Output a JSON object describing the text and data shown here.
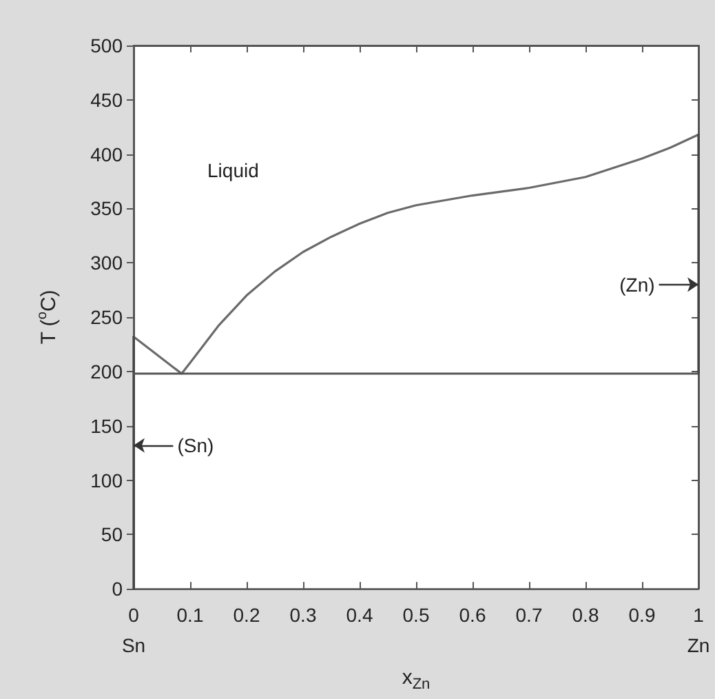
{
  "chart_data": {
    "type": "line",
    "xlabel": "x$_{Zn}$",
    "ylabel": "T ($^{o}$C)",
    "xlim": [
      0,
      1
    ],
    "ylim": [
      0,
      500
    ],
    "xticks": [
      {
        "value": 0,
        "label": "0\nSn"
      },
      0.1,
      0.2,
      0.3,
      0.4,
      0.5,
      0.6,
      0.7,
      0.8,
      0.9,
      {
        "value": 1,
        "label": "1\nZn"
      }
    ],
    "yticks": [
      0,
      50,
      100,
      150,
      200,
      250,
      300,
      350,
      400,
      450,
      500
    ],
    "grid": false,
    "marker": "none",
    "line_style": "solid",
    "series": [
      {
        "color": "#6a6a6a",
        "x": [
          0,
          0.085,
          0.1,
          0.15,
          0.2,
          0.25,
          0.3,
          0.35,
          0.4,
          0.45,
          0.5,
          0.6,
          0.7,
          0.8,
          0.9,
          0.95,
          1
        ],
        "values": [
          232,
          198,
          208,
          242,
          270,
          292,
          310,
          324,
          336,
          346,
          353,
          362,
          369,
          379,
          396,
          406,
          418
        ]
      },
      {
        "color": "#444444",
        "x": [
          0,
          0
        ],
        "values": [
          0,
          232
        ]
      },
      {
        "color": "#444444",
        "x": [
          1,
          1
        ],
        "values": [
          198,
          418
        ]
      }
    ],
    "ref_lines": [
      {
        "axis": "y",
        "value": 198,
        "color": "#555555"
      }
    ],
    "annotations": [
      "Liquid",
      {
        "text": "(Sn)",
        "x": 0,
        "y": 132
      },
      {
        "text": "(Zn)",
        "x": 1,
        "y": 280
      }
    ]
  }
}
